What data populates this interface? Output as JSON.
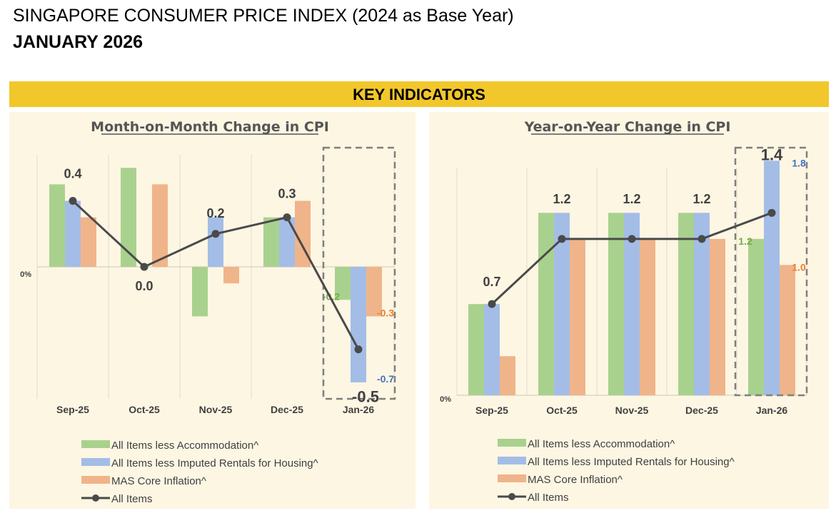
{
  "header": {
    "title": "SINGAPORE CONSUMER PRICE INDEX (2024 as Base Year)",
    "period": "JANUARY 2026"
  },
  "banner": {
    "label": "KEY INDICATORS"
  },
  "colors": {
    "banner": "#f2c72b",
    "panel_background": "#fdf6e3",
    "accommodation": "#a9d18e",
    "imputed_rentals": "#a4bde6",
    "core": "#f0b48a",
    "all_items": "#4a4a4a",
    "label_green": "#70ad47",
    "label_blue": "#4472c4",
    "label_orange": "#ed7d31"
  },
  "chart_data": [
    {
      "type": "bar",
      "title": "Month-on-Month Change in CPI",
      "categories": [
        "Sep-25",
        "Oct-25",
        "Nov-25",
        "Dec-25",
        "Jan-26"
      ],
      "zero_label": "0%",
      "ylim": [
        -0.8,
        0.8
      ],
      "grid": "vertical",
      "legend_position": "bottom",
      "highlight_category": "Jan-26",
      "series": [
        {
          "name": "All Items less Accommodation^",
          "kind": "bar",
          "color_key": "accommodation",
          "values": [
            0.5,
            0.6,
            -0.3,
            0.3,
            -0.2
          ],
          "labels": [
            "",
            "",
            "",
            "",
            "-0.2"
          ]
        },
        {
          "name": "All Items less Imputed Rentals for Housing^",
          "kind": "bar",
          "color_key": "imputed_rentals",
          "values": [
            0.4,
            0.0,
            0.3,
            0.3,
            -0.7
          ],
          "labels": [
            "",
            "",
            "",
            "",
            "-0.7"
          ]
        },
        {
          "name": "MAS Core Inflation^",
          "kind": "bar",
          "color_key": "core",
          "values": [
            0.3,
            0.5,
            -0.1,
            0.4,
            -0.3
          ],
          "labels": [
            "",
            "",
            "",
            "",
            "-0.3"
          ]
        },
        {
          "name": "All Items",
          "kind": "line",
          "color_key": "all_items",
          "values": [
            0.4,
            0.0,
            0.2,
            0.3,
            -0.5
          ],
          "labels": [
            "0.4",
            "0.0",
            "0.2",
            "0.3",
            "-0.5"
          ]
        }
      ]
    },
    {
      "type": "bar",
      "title": "Year-on-Year Change in CPI",
      "categories": [
        "Sep-25",
        "Oct-25",
        "Nov-25",
        "Dec-25",
        "Jan-26"
      ],
      "zero_label": "0%",
      "ylim": [
        0,
        1.9
      ],
      "grid": "vertical",
      "legend_position": "bottom",
      "highlight_category": "Jan-26",
      "series": [
        {
          "name": "All Items less Accommodation^",
          "kind": "bar",
          "color_key": "accommodation",
          "values": [
            0.7,
            1.4,
            1.4,
            1.4,
            1.2
          ],
          "labels": [
            "",
            "",
            "",
            "",
            "1.2"
          ]
        },
        {
          "name": "All Items less Imputed Rentals for Housing^",
          "kind": "bar",
          "color_key": "imputed_rentals",
          "values": [
            0.7,
            1.4,
            1.4,
            1.4,
            1.8
          ],
          "labels": [
            "",
            "",
            "",
            "",
            "1.8"
          ]
        },
        {
          "name": "MAS Core Inflation^",
          "kind": "bar",
          "color_key": "core",
          "values": [
            0.3,
            1.2,
            1.2,
            1.2,
            1.0
          ],
          "labels": [
            "",
            "",
            "",
            "",
            "1.0"
          ]
        },
        {
          "name": "All Items",
          "kind": "line",
          "color_key": "all_items",
          "values": [
            0.7,
            1.2,
            1.2,
            1.2,
            1.4
          ],
          "labels": [
            "0.7",
            "1.2",
            "1.2",
            "1.2",
            "1.4"
          ]
        }
      ]
    }
  ]
}
